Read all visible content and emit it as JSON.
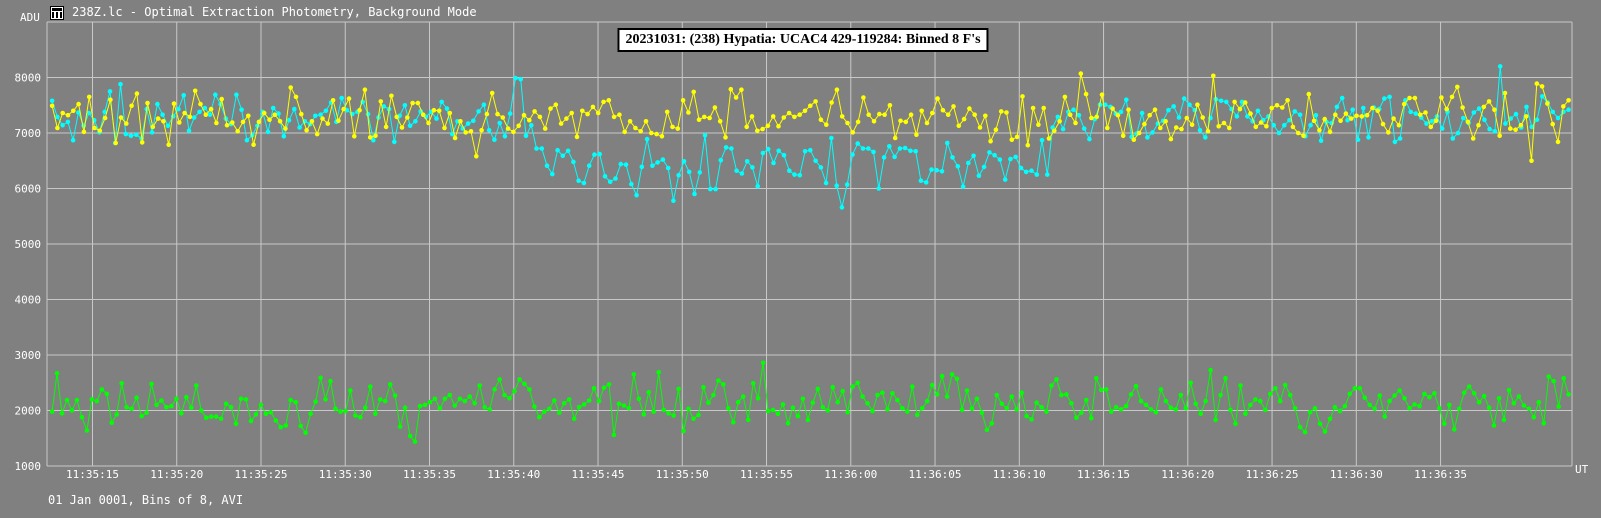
{
  "window": {
    "title": "238Z.lc - Optimal Extraction Photometry, Background Mode",
    "icon": "lightcurve-app-icon"
  },
  "footer": {
    "text": "01 Jan 0001, Bins of 8, AVI"
  },
  "colors": {
    "background": "#808080",
    "grid": "#c8c8c8",
    "target": "#ffff00",
    "comparison": "#00ffff",
    "background_series": "#00ff00"
  },
  "chart_data": {
    "type": "line",
    "title": "20231031: (238) Hypatia: UCAC4 429-119284: Binned 8 F's",
    "ylabel": "ADU",
    "xlabel": "UT",
    "ylim": [
      1000,
      9000
    ],
    "xlim": [
      "11:35:12.3",
      "11:36:42.8"
    ],
    "y_ticks": [
      1000,
      2000,
      3000,
      4000,
      5000,
      6000,
      7000,
      8000
    ],
    "x_ticks": [
      "11:35:15",
      "11:35:20",
      "11:35:25",
      "11:35:30",
      "11:35:35",
      "11:35:40",
      "11:35:45",
      "11:35:50",
      "11:35:55",
      "11:36:00",
      "11:36:05",
      "11:36:10",
      "11:36:15",
      "11:36:20",
      "11:36:25",
      "11:36:30",
      "11:36:35"
    ],
    "grid": true,
    "x_start": "11:35:12.6",
    "x_end": "11:36:42.6",
    "series": [
      {
        "values": [
          7490,
          7090,
          7360,
          7320,
          7400,
          7520,
          7020,
          7650,
          7090,
          7040,
          7270,
          7600,
          6820,
          7280,
          7170,
          7490,
          7710,
          6830,
          7540,
          7110,
          7260,
          7210,
          6790,
          7530,
          7190,
          7360,
          7290,
          7760,
          7520,
          7330,
          7430,
          7180,
          7610,
          7140,
          7190,
          7030,
          7200,
          7310,
          6790,
          7200,
          7360,
          7240,
          7330,
          7210,
          7080,
          7820,
          7650,
          7340,
          7050,
          7210,
          6980,
          7260,
          7170,
          7590,
          7220,
          7430,
          7620,
          6940,
          7410,
          7780,
          6920,
          6950,
          7570,
          7110,
          7670,
          7290,
          7100,
          7280,
          7540,
          7540,
          7330,
          7180,
          7410,
          7400,
          7090,
          7360,
          6910,
          7210,
          7010,
          7030,
          6580,
          7050,
          7340,
          7720,
          7340,
          7280,
          7080,
          7020,
          7130,
          7320,
          7230,
          7390,
          7290,
          7080,
          7440,
          7510,
          7170,
          7260,
          7360,
          6930,
          7400,
          7340,
          7470,
          7360,
          7560,
          7590,
          7290,
          7330,
          7020,
          7210,
          7090,
          7030,
          7210,
          7000,
          6980,
          6940,
          7380,
          7110,
          7080,
          7590,
          7370,
          7740,
          7240,
          7290,
          7270,
          7460,
          7210,
          6920,
          7790,
          7640,
          7780,
          7110,
          7300,
          7040,
          7070,
          7130,
          7300,
          7120,
          7280,
          7360,
          7290,
          7330,
          7400,
          7490,
          7570,
          7240,
          7150,
          7550,
          7780,
          7300,
          7180,
          7010,
          7200,
          7640,
          7330,
          7210,
          7340,
          7330,
          7500,
          6910,
          7220,
          7200,
          7330,
          6970,
          7400,
          7180,
          7360,
          7620,
          7410,
          7330,
          7480,
          7130,
          7250,
          7440,
          7330,
          7100,
          7310,
          6850,
          7060,
          7390,
          7370,
          6880,
          6930,
          7660,
          6780,
          7450,
          7150,
          7450,
          6900,
          7040,
          7210,
          7650,
          7330,
          7180,
          8070,
          7700,
          7270,
          7290,
          7690,
          7090,
          7440,
          7320,
          6950,
          7420,
          6880,
          7000,
          7160,
          7320,
          7420,
          7090,
          7210,
          6890,
          7100,
          7070,
          7270,
          7150,
          7510,
          7280,
          7030,
          8030,
          7120,
          7180,
          7090,
          7560,
          7430,
          7550,
          7350,
          7110,
          7190,
          7120,
          7450,
          7500,
          7460,
          7590,
          7110,
          7000,
          6950,
          7700,
          7220,
          7050,
          7250,
          7020,
          7330,
          7220,
          7350,
          7260,
          7310,
          7300,
          7320,
          7450,
          7400,
          7160,
          7010,
          7260,
          7140,
          7520,
          7630,
          7630,
          7330,
          7370,
          7110,
          7220,
          7640,
          7430,
          7650,
          7830,
          7460,
          7200,
          6900,
          7140,
          7470,
          7570,
          7420,
          6950,
          7720,
          7080,
          7060,
          7140,
          7300,
          6500,
          7890,
          7840,
          7530,
          7160,
          6840,
          7480,
          7590
        ]
      },
      {
        "values": [
          7580,
          7290,
          7140,
          7200,
          6870,
          7370,
          7130,
          7360,
          7230,
          7010,
          7380,
          7750,
          6820,
          7880,
          6980,
          6950,
          6970,
          6900,
          7430,
          7010,
          7520,
          7330,
          7130,
          7300,
          7430,
          7680,
          7040,
          7280,
          7380,
          7450,
          7330,
          7690,
          7520,
          7260,
          7160,
          7690,
          7420,
          6870,
          6960,
          7130,
          7380,
          7020,
          7450,
          7350,
          6940,
          7230,
          7430,
          7100,
          7210,
          7160,
          7310,
          7330,
          7400,
          7550,
          7200,
          7630,
          7410,
          7340,
          7380,
          7560,
          7340,
          6870,
          7280,
          7480,
          7430,
          6840,
          7310,
          7500,
          7130,
          7210,
          7390,
          7290,
          7380,
          7260,
          7560,
          7440,
          6980,
          7210,
          7080,
          7170,
          7220,
          7390,
          7510,
          7050,
          6880,
          7180,
          6940,
          7350,
          7990,
          7970,
          6950,
          7140,
          6720,
          6720,
          6410,
          6260,
          6690,
          6590,
          6680,
          6480,
          6140,
          6100,
          6410,
          6610,
          6620,
          6220,
          6120,
          6180,
          6440,
          6430,
          6080,
          5880,
          6390,
          6890,
          6410,
          6470,
          6520,
          6370,
          5780,
          6240,
          6490,
          6300,
          5900,
          6290,
          6960,
          5990,
          5990,
          6510,
          6740,
          6720,
          6320,
          6270,
          6490,
          6380,
          6040,
          6640,
          6710,
          6460,
          6680,
          6600,
          6320,
          6250,
          6240,
          6670,
          6690,
          6500,
          6380,
          6100,
          6910,
          6050,
          5660,
          6070,
          6610,
          6810,
          6720,
          6720,
          6660,
          6000,
          6560,
          6760,
          6570,
          6720,
          6730,
          6680,
          6670,
          6140,
          6110,
          6340,
          6330,
          6310,
          6820,
          6560,
          6400,
          6030,
          6460,
          6590,
          6230,
          6390,
          6650,
          6600,
          6520,
          6160,
          6530,
          6570,
          6370,
          6300,
          6320,
          6250,
          6870,
          6250,
          7100,
          7290,
          7070,
          7380,
          7420,
          7320,
          7080,
          6890,
          7250,
          7510,
          7510,
          7470,
          7350,
          7380,
          7600,
          6930,
          6990,
          7360,
          6920,
          7010,
          7170,
          7220,
          7410,
          7480,
          7280,
          7620,
          7510,
          7410,
          7050,
          6920,
          7270,
          7610,
          7580,
          7560,
          7430,
          7300,
          7560,
          7300,
          7210,
          7400,
          7230,
          7300,
          7140,
          7000,
          7140,
          7230,
          7390,
          7330,
          6940,
          7140,
          7320,
          6860,
          7200,
          7180,
          7470,
          7630,
          7230,
          7420,
          6880,
          7450,
          6920,
          7460,
          7430,
          7620,
          7650,
          6840,
          6900,
          7590,
          7380,
          7350,
          7280,
          7170,
          7210,
          7300,
          7080,
          7380,
          6900,
          7000,
          7270,
          7180,
          7370,
          7440,
          7240,
          7070,
          7030,
          8200,
          7170,
          7260,
          7340,
          7100,
          7470,
          7110,
          7240,
          7660,
          7550,
          7380,
          7270,
          7380,
          7420
        ]
      },
      {
        "values": [
          1980,
          2670,
          1950,
          2190,
          2000,
          2190,
          1880,
          1640,
          2200,
          2170,
          2380,
          2300,
          1780,
          1930,
          2490,
          2060,
          2030,
          2230,
          1900,
          1960,
          2480,
          2100,
          2180,
          2060,
          2080,
          2210,
          1950,
          2240,
          2050,
          2450,
          2000,
          1870,
          1890,
          1890,
          1850,
          2120,
          2060,
          1760,
          2210,
          2200,
          1810,
          1930,
          2100,
          1940,
          1970,
          1820,
          1700,
          1730,
          2190,
          2150,
          1720,
          1600,
          1940,
          2160,
          2590,
          2200,
          2530,
          2030,
          1980,
          1990,
          2360,
          1910,
          1880,
          2050,
          2430,
          1940,
          2200,
          2170,
          2470,
          2270,
          1710,
          2050,
          1540,
          1440,
          2080,
          2100,
          2150,
          2210,
          2040,
          2210,
          2280,
          2090,
          2210,
          2170,
          2250,
          2130,
          2450,
          2060,
          2020,
          2380,
          2560,
          2280,
          2220,
          2350,
          2560,
          2480,
          2380,
          2070,
          1880,
          1980,
          2030,
          2180,
          1960,
          2130,
          2200,
          1850,
          2060,
          2110,
          2180,
          2400,
          2170,
          2410,
          2470,
          1560,
          2120,
          2090,
          2040,
          2650,
          2210,
          1930,
          2330,
          1980,
          2690,
          2010,
          1950,
          1910,
          2390,
          1630,
          2030,
          1850,
          1920,
          2420,
          2140,
          2280,
          2540,
          2470,
          2040,
          1790,
          2150,
          2250,
          1830,
          2490,
          2220,
          2860,
          1990,
          2010,
          1940,
          2110,
          1770,
          2050,
          1900,
          2210,
          1830,
          2140,
          2390,
          2060,
          2000,
          2420,
          2150,
          2350,
          1970,
          2430,
          2500,
          2250,
          2130,
          1990,
          2280,
          2320,
          2020,
          2310,
          2190,
          2040,
          1980,
          2430,
          1920,
          2040,
          2170,
          2460,
          2290,
          2620,
          2250,
          2650,
          2570,
          2010,
          2360,
          2030,
          2210,
          1960,
          1650,
          1770,
          2280,
          2120,
          2040,
          2250,
          2020,
          2320,
          1900,
          1840,
          2140,
          2060,
          1980,
          2450,
          2560,
          2280,
          2290,
          2130,
          1870,
          1960,
          2190,
          1860,
          2580,
          2370,
          2380,
          1980,
          2060,
          2020,
          2080,
          2290,
          2440,
          2170,
          2100,
          2020,
          1970,
          2380,
          2170,
          2050,
          2020,
          2280,
          2040,
          2500,
          2120,
          1940,
          2170,
          2730,
          1830,
          2280,
          2580,
          2010,
          1760,
          2450,
          1940,
          2100,
          2200,
          2170,
          2010,
          2300,
          2400,
          2170,
          2460,
          2280,
          2040,
          1700,
          1610,
          1970,
          2040,
          1760,
          1620,
          1850,
          2060,
          1990,
          2080,
          2300,
          2400,
          2400,
          2230,
          2100,
          2030,
          2270,
          1890,
          2170,
          2270,
          2360,
          2220,
          2040,
          2110,
          2080,
          2300,
          2240,
          2310,
          2040,
          1760,
          2100,
          1660,
          2030,
          2320,
          2430,
          2310,
          2150,
          2260,
          2050,
          1730,
          2220,
          1830,
          2370,
          2130,
          2250,
          2090,
          2030,
          1880,
          2150,
          1770,
          2610,
          2530,
          2070,
          2580,
          2290
        ]
      }
    ]
  }
}
